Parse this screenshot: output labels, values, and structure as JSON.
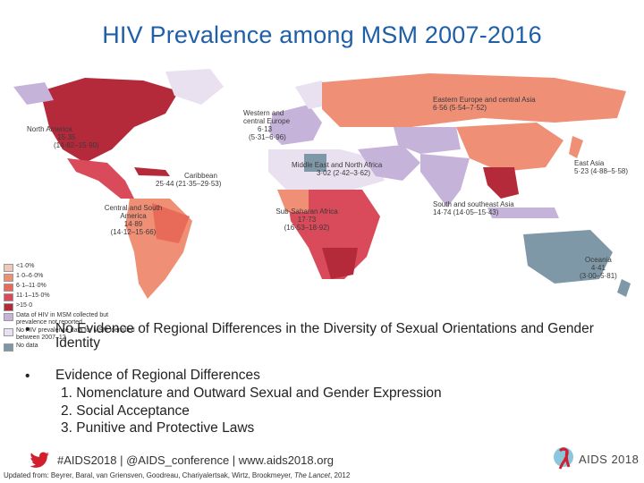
{
  "title": "HIV Prevalence among MSM 2007-2016",
  "colors": {
    "title": "#1f5fa8",
    "lt1": "#f2c6b8",
    "c1to6": "#ef8f76",
    "c6to11": "#e86a58",
    "c11to15": "#d94a5a",
    "gt15": "#b52a3a",
    "notreported": "#c6b3d9",
    "nodata2007": "#e9e0f0",
    "nodata": "#7f98a8"
  },
  "regions": {
    "north_america": {
      "name": "North America",
      "value": "15·35",
      "ci": "(14·82–15·90)"
    },
    "caribbean": {
      "name": "Caribbean",
      "value": "25·44 (21·35–29·53)"
    },
    "central_south_america": {
      "name": "Central and South America",
      "value": "14·89",
      "ci": "(14·12–15·66)"
    },
    "western_central_europe": {
      "name": "Western and central Europe",
      "value": "6·13",
      "ci": "(5·31–6·96)"
    },
    "eastern_europe_central_asia": {
      "name": "Eastern Europe and central Asia",
      "value": "6·56 (5·54–7·52)"
    },
    "middle_east_north_africa": {
      "name": "Middle East and North Africa",
      "value": "3·02 (2·42–3·62)"
    },
    "east_asia": {
      "name": "East Asia",
      "value": "5·23 (4·88–5·58)"
    },
    "south_southeast_asia": {
      "name": "South and southeast Asia",
      "value": "14·74 (14·05–15·43)"
    },
    "sub_saharan_africa": {
      "name": "Sub-Saharan Africa",
      "value": "17·73",
      "ci": "(16·53–18·92)"
    },
    "oceania": {
      "name": "Oceania",
      "value": "4·41",
      "ci": "(3·00–5·81)"
    }
  },
  "legend": [
    {
      "label": "<1·0%",
      "color": "#f2c6b8"
    },
    {
      "label": "1·0–6·0%",
      "color": "#ef8f76"
    },
    {
      "label": "6·1–11·0%",
      "color": "#e86a58"
    },
    {
      "label": "11·1–15·0%",
      "color": "#d94a5a"
    },
    {
      "label": ">15·0",
      "color": "#b52a3a"
    },
    {
      "label": "Data of HIV in MSM collected but prevalence not reported",
      "color": "#c6b3d9"
    },
    {
      "label": "No HIV prevalence data for MSM identified between 2007–12",
      "color": "#e9e0f0"
    },
    {
      "label": "No data",
      "color": "#7f98a8"
    }
  ],
  "bullets": {
    "b1": "No Evidence of Regional Differences in the Diversity of Sexual Orientations and Gender Identity",
    "b2": "Evidence of Regional Differences",
    "sub": [
      "1.  Nomenclature and Outward Sexual and Gender Expression",
      "2.  Social Acceptance",
      "3.  Punitive and Protective Laws"
    ],
    "marker": "•"
  },
  "footer": {
    "tweet_line": "#AIDS2018 | @AIDS_conference | www.aids2018.org",
    "citation_prefix": "Updated from: Beyrer, Baral, van Griensven, Goodreau, Chariyalertsak,  Wirtz, Brookmeyer, ",
    "citation_journal": "The Lancet",
    "citation_suffix": ", 2012"
  },
  "logo": {
    "text": "AIDS 2018"
  }
}
